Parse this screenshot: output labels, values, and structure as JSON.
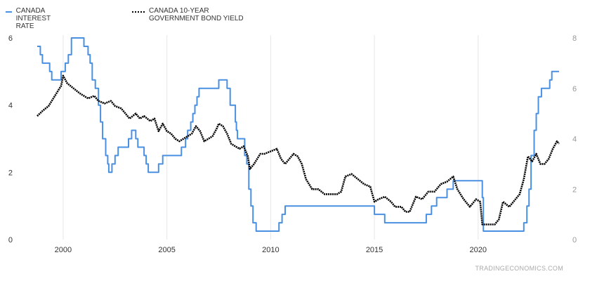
{
  "colors": {
    "interest_rate": "#4a90e2",
    "bond_yield": "#000000",
    "grid": "#e6e6e6",
    "axis_text": "#333333"
  },
  "watermark": "TRADINGECONOMICS.COM",
  "chart_data": {
    "type": "line",
    "grid": "vertical",
    "legend_position": "top-left",
    "x_ticks": [
      "2000",
      "2005",
      "2010",
      "2015",
      "2020"
    ],
    "xlim": [
      1998.75,
      2023.9
    ],
    "left_axis": {
      "ticks": [
        "0",
        "2",
        "4",
        "6"
      ],
      "ylim": [
        0,
        6
      ]
    },
    "right_axis": {
      "ticks": [
        "0",
        "2",
        "4",
        "6",
        "8"
      ],
      "ylim": [
        0,
        8
      ]
    },
    "series": [
      {
        "name": "CANADA INTEREST RATE",
        "axis": "left",
        "style": "solid",
        "step": true,
        "points": [
          [
            1998.75,
            5.75
          ],
          [
            1998.9,
            5.5
          ],
          [
            1999.0,
            5.25
          ],
          [
            1999.35,
            5.0
          ],
          [
            1999.45,
            4.75
          ],
          [
            1999.9,
            5.0
          ],
          [
            2000.1,
            5.25
          ],
          [
            2000.25,
            5.5
          ],
          [
            2000.4,
            6.0
          ],
          [
            2000.65,
            6.0
          ],
          [
            2000.75,
            6.0
          ],
          [
            2001.0,
            5.75
          ],
          [
            2001.2,
            5.5
          ],
          [
            2001.3,
            5.25
          ],
          [
            2001.4,
            4.75
          ],
          [
            2001.55,
            4.5
          ],
          [
            2001.7,
            4.0
          ],
          [
            2001.8,
            3.5
          ],
          [
            2001.9,
            3.0
          ],
          [
            2002.05,
            2.5
          ],
          [
            2002.15,
            2.25
          ],
          [
            2002.2,
            2.0
          ],
          [
            2002.35,
            2.25
          ],
          [
            2002.5,
            2.5
          ],
          [
            2002.65,
            2.75
          ],
          [
            2003.15,
            3.0
          ],
          [
            2003.3,
            3.25
          ],
          [
            2003.5,
            3.0
          ],
          [
            2003.6,
            2.75
          ],
          [
            2003.9,
            2.5
          ],
          [
            2004.0,
            2.25
          ],
          [
            2004.1,
            2.0
          ],
          [
            2004.6,
            2.25
          ],
          [
            2004.8,
            2.5
          ],
          [
            2005.7,
            2.75
          ],
          [
            2005.9,
            3.0
          ],
          [
            2006.0,
            3.25
          ],
          [
            2006.15,
            3.5
          ],
          [
            2006.25,
            3.75
          ],
          [
            2006.35,
            4.0
          ],
          [
            2006.45,
            4.25
          ],
          [
            2006.55,
            4.5
          ],
          [
            2007.5,
            4.75
          ],
          [
            2007.9,
            4.5
          ],
          [
            2008.05,
            4.0
          ],
          [
            2008.3,
            3.5
          ],
          [
            2008.35,
            3.25
          ],
          [
            2008.4,
            3.0
          ],
          [
            2008.75,
            2.5
          ],
          [
            2008.85,
            2.25
          ],
          [
            2008.95,
            1.5
          ],
          [
            2009.05,
            1.0
          ],
          [
            2009.15,
            0.5
          ],
          [
            2009.3,
            0.25
          ],
          [
            2010.4,
            0.5
          ],
          [
            2010.55,
            0.75
          ],
          [
            2010.7,
            1.0
          ],
          [
            2015.0,
            0.75
          ],
          [
            2015.5,
            0.5
          ],
          [
            2017.5,
            0.75
          ],
          [
            2017.75,
            1.0
          ],
          [
            2018.0,
            1.25
          ],
          [
            2018.5,
            1.5
          ],
          [
            2018.8,
            1.75
          ],
          [
            2020.2,
            1.25
          ],
          [
            2020.25,
            0.25
          ],
          [
            2022.2,
            0.5
          ],
          [
            2022.35,
            1.0
          ],
          [
            2022.45,
            1.5
          ],
          [
            2022.55,
            2.5
          ],
          [
            2022.7,
            3.25
          ],
          [
            2022.8,
            3.75
          ],
          [
            2022.9,
            4.25
          ],
          [
            2023.05,
            4.5
          ],
          [
            2023.45,
            4.75
          ],
          [
            2023.55,
            5.0
          ],
          [
            2023.9,
            5.0
          ]
        ]
      },
      {
        "name": "CANADA 10-YEAR GOVERNMENT BOND YIELD",
        "axis": "right",
        "style": "dotted",
        "step": false,
        "points": [
          [
            1998.75,
            4.9
          ],
          [
            1999.0,
            5.1
          ],
          [
            1999.3,
            5.3
          ],
          [
            1999.6,
            5.7
          ],
          [
            1999.9,
            6.1
          ],
          [
            2000.0,
            6.5
          ],
          [
            2000.2,
            6.2
          ],
          [
            2000.5,
            6.0
          ],
          [
            2000.8,
            5.8
          ],
          [
            2001.0,
            5.7
          ],
          [
            2001.2,
            5.6
          ],
          [
            2001.5,
            5.7
          ],
          [
            2001.7,
            5.5
          ],
          [
            2002.0,
            5.4
          ],
          [
            2002.3,
            5.5
          ],
          [
            2002.5,
            5.3
          ],
          [
            2002.8,
            5.2
          ],
          [
            2003.0,
            5.0
          ],
          [
            2003.2,
            4.8
          ],
          [
            2003.5,
            5.0
          ],
          [
            2003.7,
            4.8
          ],
          [
            2003.9,
            4.9
          ],
          [
            2004.2,
            4.7
          ],
          [
            2004.4,
            4.8
          ],
          [
            2004.6,
            4.3
          ],
          [
            2004.8,
            4.6
          ],
          [
            2005.0,
            4.3
          ],
          [
            2005.2,
            4.2
          ],
          [
            2005.4,
            4.0
          ],
          [
            2005.6,
            3.9
          ],
          [
            2005.8,
            4.0
          ],
          [
            2006.0,
            4.1
          ],
          [
            2006.2,
            4.2
          ],
          [
            2006.4,
            4.5
          ],
          [
            2006.6,
            4.3
          ],
          [
            2006.8,
            3.9
          ],
          [
            2007.0,
            4.0
          ],
          [
            2007.2,
            4.1
          ],
          [
            2007.4,
            4.4
          ],
          [
            2007.5,
            4.6
          ],
          [
            2007.7,
            4.5
          ],
          [
            2007.9,
            4.2
          ],
          [
            2008.1,
            3.8
          ],
          [
            2008.3,
            3.7
          ],
          [
            2008.5,
            3.6
          ],
          [
            2008.7,
            3.7
          ],
          [
            2008.9,
            3.3
          ],
          [
            2009.0,
            2.8
          ],
          [
            2009.2,
            3.0
          ],
          [
            2009.5,
            3.4
          ],
          [
            2009.7,
            3.4
          ],
          [
            2010.0,
            3.5
          ],
          [
            2010.3,
            3.6
          ],
          [
            2010.5,
            3.2
          ],
          [
            2010.7,
            3.0
          ],
          [
            2010.9,
            3.2
          ],
          [
            2011.1,
            3.4
          ],
          [
            2011.3,
            3.3
          ],
          [
            2011.5,
            3.0
          ],
          [
            2011.7,
            2.4
          ],
          [
            2012.0,
            2.0
          ],
          [
            2012.3,
            2.0
          ],
          [
            2012.6,
            1.8
          ],
          [
            2012.9,
            1.8
          ],
          [
            2013.2,
            1.8
          ],
          [
            2013.4,
            1.9
          ],
          [
            2013.6,
            2.5
          ],
          [
            2013.9,
            2.6
          ],
          [
            2014.2,
            2.4
          ],
          [
            2014.5,
            2.2
          ],
          [
            2014.8,
            2.1
          ],
          [
            2015.0,
            1.5
          ],
          [
            2015.2,
            1.6
          ],
          [
            2015.5,
            1.7
          ],
          [
            2015.8,
            1.5
          ],
          [
            2016.0,
            1.3
          ],
          [
            2016.3,
            1.3
          ],
          [
            2016.5,
            1.1
          ],
          [
            2016.7,
            1.1
          ],
          [
            2017.0,
            1.7
          ],
          [
            2017.3,
            1.6
          ],
          [
            2017.6,
            1.9
          ],
          [
            2017.9,
            1.9
          ],
          [
            2018.2,
            2.2
          ],
          [
            2018.5,
            2.3
          ],
          [
            2018.8,
            2.5
          ],
          [
            2019.0,
            2.0
          ],
          [
            2019.3,
            1.6
          ],
          [
            2019.6,
            1.3
          ],
          [
            2019.9,
            1.6
          ],
          [
            2020.1,
            1.5
          ],
          [
            2020.2,
            0.6
          ],
          [
            2020.5,
            0.6
          ],
          [
            2020.8,
            0.6
          ],
          [
            2021.0,
            0.8
          ],
          [
            2021.2,
            1.5
          ],
          [
            2021.5,
            1.3
          ],
          [
            2021.8,
            1.6
          ],
          [
            2022.0,
            1.8
          ],
          [
            2022.2,
            2.4
          ],
          [
            2022.4,
            3.3
          ],
          [
            2022.6,
            3.1
          ],
          [
            2022.8,
            3.4
          ],
          [
            2023.0,
            3.0
          ],
          [
            2023.2,
            3.0
          ],
          [
            2023.4,
            3.2
          ],
          [
            2023.6,
            3.6
          ],
          [
            2023.8,
            3.9
          ],
          [
            2023.9,
            3.8
          ]
        ]
      }
    ]
  }
}
